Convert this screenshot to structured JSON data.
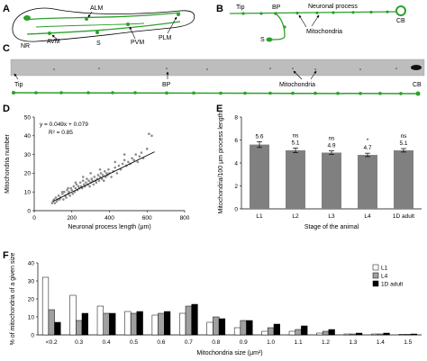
{
  "panels": {
    "A": {
      "letter": "A",
      "labels": {
        "alm": "ALM",
        "nr": "NR",
        "avm": "AVM",
        "s": "S",
        "pvm": "PVM",
        "plm": "PLM"
      }
    },
    "B": {
      "letter": "B",
      "labels": {
        "tip": "Tip",
        "bp": "BP",
        "process": "Neuronal process",
        "cb": "CB",
        "s": "S",
        "mito": "Mitochondria"
      }
    },
    "C": {
      "letter": "C",
      "labels": {
        "tip": "Tip",
        "bp": "BP",
        "mito": "Mitochondria",
        "cb": "CB"
      }
    },
    "D": {
      "letter": "D"
    },
    "E": {
      "letter": "E"
    },
    "F": {
      "letter": "F"
    }
  },
  "chart_data": [
    {
      "panel": "D",
      "type": "scatter",
      "xlabel": "Neuronal process length (μm)",
      "ylabel": "Mitochondria number",
      "xlim": [
        0,
        800
      ],
      "ylim": [
        0,
        50
      ],
      "xticks": [
        "0",
        "200",
        "400",
        "600",
        "800"
      ],
      "yticks": [
        "0",
        "10",
        "20",
        "30",
        "40",
        "50"
      ],
      "annotations": [
        "y = 0.049x + 0.079",
        "R² = 0.85"
      ],
      "fit": {
        "slope": 0.049,
        "intercept": 0.079,
        "x_range": [
          100,
          640
        ]
      },
      "points": [
        [
          95,
          4
        ],
        [
          100,
          5
        ],
        [
          105,
          6
        ],
        [
          110,
          4
        ],
        [
          115,
          7
        ],
        [
          120,
          5
        ],
        [
          125,
          6
        ],
        [
          130,
          8
        ],
        [
          135,
          6
        ],
        [
          140,
          7
        ],
        [
          150,
          9
        ],
        [
          155,
          6
        ],
        [
          160,
          10
        ],
        [
          165,
          8
        ],
        [
          170,
          7
        ],
        [
          175,
          11
        ],
        [
          180,
          9
        ],
        [
          185,
          10
        ],
        [
          190,
          8
        ],
        [
          195,
          12
        ],
        [
          200,
          11
        ],
        [
          205,
          9
        ],
        [
          210,
          13
        ],
        [
          215,
          10
        ],
        [
          220,
          12
        ],
        [
          225,
          14
        ],
        [
          230,
          11
        ],
        [
          235,
          13
        ],
        [
          240,
          12
        ],
        [
          245,
          15
        ],
        [
          250,
          13
        ],
        [
          255,
          12
        ],
        [
          260,
          16
        ],
        [
          265,
          14
        ],
        [
          270,
          13
        ],
        [
          275,
          15
        ],
        [
          280,
          17
        ],
        [
          285,
          14
        ],
        [
          290,
          16
        ],
        [
          295,
          13
        ],
        [
          300,
          15
        ],
        [
          305,
          17
        ],
        [
          310,
          16
        ],
        [
          315,
          14
        ],
        [
          320,
          18
        ],
        [
          325,
          16
        ],
        [
          330,
          15
        ],
        [
          335,
          17
        ],
        [
          340,
          19
        ],
        [
          345,
          16
        ],
        [
          350,
          18
        ],
        [
          355,
          20
        ],
        [
          360,
          17
        ],
        [
          365,
          19
        ],
        [
          370,
          16
        ],
        [
          375,
          21
        ],
        [
          380,
          18
        ],
        [
          385,
          20
        ],
        [
          390,
          19
        ],
        [
          395,
          22
        ],
        [
          400,
          20
        ],
        [
          410,
          18
        ],
        [
          420,
          21
        ],
        [
          430,
          23
        ],
        [
          440,
          20
        ],
        [
          450,
          24
        ],
        [
          460,
          22
        ],
        [
          470,
          25
        ],
        [
          480,
          27
        ],
        [
          490,
          24
        ],
        [
          500,
          26
        ],
        [
          510,
          25
        ],
        [
          520,
          28
        ],
        [
          530,
          27
        ],
        [
          540,
          30
        ],
        [
          550,
          26
        ],
        [
          560,
          29
        ],
        [
          570,
          31
        ],
        [
          580,
          28
        ],
        [
          600,
          33
        ],
        [
          610,
          41
        ],
        [
          625,
          40
        ],
        [
          480,
          30
        ],
        [
          430,
          26
        ],
        [
          300,
          20
        ],
        [
          260,
          18
        ],
        [
          220,
          15
        ],
        [
          180,
          12
        ],
        [
          150,
          10
        ],
        [
          350,
          22
        ]
      ]
    },
    {
      "panel": "E",
      "type": "bar",
      "xlabel": "Stage of the animal",
      "ylabel": "Mitochondria/100 μm process length",
      "ylim": [
        0,
        8
      ],
      "yticks": [
        "0",
        "2",
        "4",
        "6",
        "8"
      ],
      "categories": [
        "L1",
        "L2",
        "L3",
        "L4",
        "1D adult"
      ],
      "values": [
        5.6,
        5.1,
        4.9,
        4.7,
        5.1
      ],
      "errors": [
        0.25,
        0.2,
        0.15,
        0.15,
        0.15
      ],
      "value_labels": [
        "5.6",
        "5.1",
        "4.9",
        "4.7",
        "5.1"
      ],
      "sig_labels": [
        "",
        "ns",
        "ns",
        "*",
        "ns"
      ],
      "color": "#808080"
    },
    {
      "panel": "F",
      "type": "bar",
      "xlabel": "Mitochondria size (μm²)",
      "ylabel": "% of mitochondria of a given size",
      "ylim": [
        0,
        40
      ],
      "yticks": [
        "0",
        "10",
        "20",
        "30",
        "40"
      ],
      "categories": [
        "<0.2",
        "0.3",
        "0.4",
        "0.5",
        "0.6",
        "0.7",
        "0.8",
        "0.9",
        "1.0",
        "1.1",
        "1.2",
        "1.3",
        "1.4",
        "1.5"
      ],
      "legend_position": "top-right",
      "series": [
        {
          "name": "L1",
          "color": "#ffffff",
          "values": [
            32,
            22,
            16,
            13,
            11,
            12,
            7,
            4,
            2,
            2,
            1,
            0.5,
            0.5,
            0.3
          ]
        },
        {
          "name": "L4",
          "color": "#a0a0a0",
          "values": [
            14,
            8,
            12,
            12,
            12,
            16,
            10,
            8,
            4,
            3,
            2,
            0.5,
            0.5,
            0.3
          ]
        },
        {
          "name": "1D adult",
          "color": "#000000",
          "values": [
            7,
            12,
            12,
            13,
            13,
            17,
            9,
            8,
            6,
            5,
            3,
            1,
            1,
            0.5
          ]
        }
      ]
    }
  ]
}
